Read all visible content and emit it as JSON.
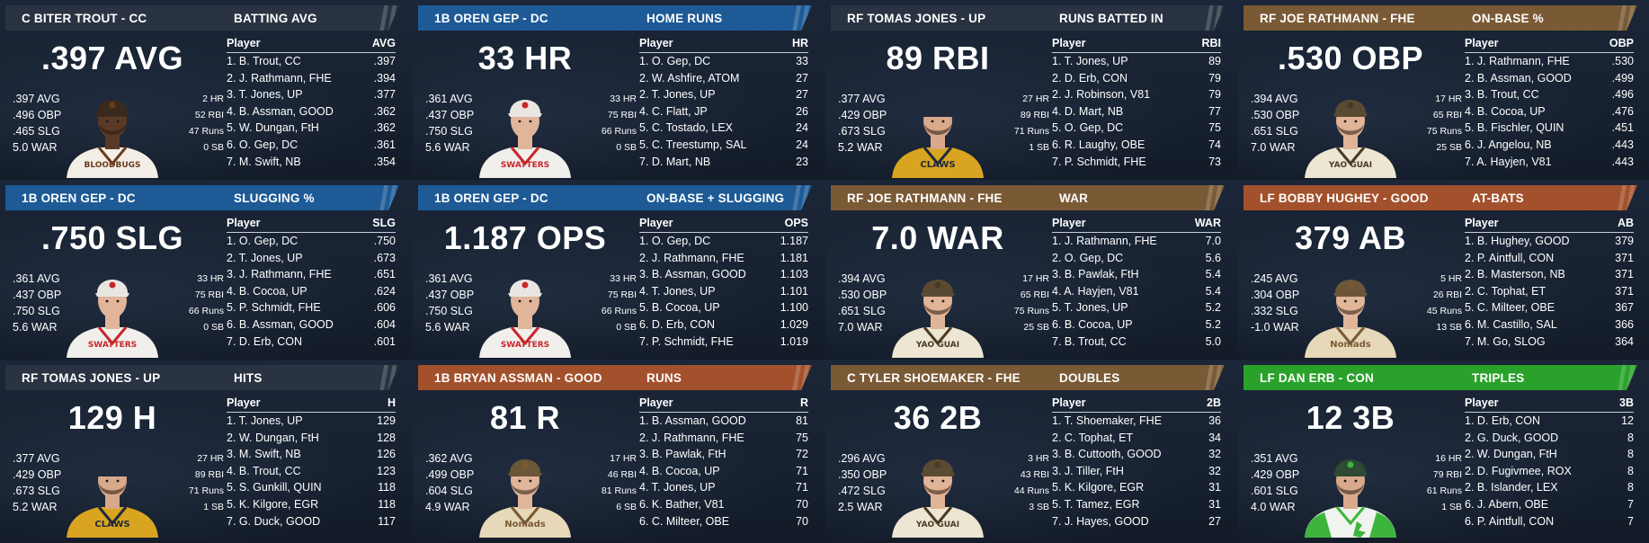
{
  "colors": {
    "background": "#141c29",
    "header_navy": "#2a3342",
    "header_blue": "#1d5a96",
    "header_brown": "#7a5a35",
    "header_orange": "#a3512c",
    "header_green": "#2aa12a"
  },
  "cards": [
    {
      "header_color": "#2a3342",
      "player": "C BITER TROUT - CC",
      "stat_title": "BATTING AVG",
      "big_stat": ".397 AVG",
      "left_stats": [
        ".397 AVG",
        ".496 OBP",
        ".465 SLG",
        "5.0 WAR"
      ],
      "right_stats": [
        "2 HR",
        "52 RBI",
        "47 Runs",
        "0 SB"
      ],
      "portrait": {
        "cap": "#3a2a1e",
        "jersey": "#f3efe6",
        "trim": "#6b3c1e",
        "skin": "#5a3a26",
        "lettering": "BLOODBUGS",
        "style": "dark"
      },
      "table": {
        "col_player": "Player",
        "col_stat": "AVG",
        "rows": [
          [
            "1. B. Trout, CC",
            ".397"
          ],
          [
            "2. J. Rathmann, FHE",
            ".394"
          ],
          [
            "3. T. Jones, UP",
            ".377"
          ],
          [
            "4. B. Assman, GOOD",
            ".362"
          ],
          [
            "5. W. Dungan, FtH",
            ".362"
          ],
          [
            "6. O. Gep, DC",
            ".361"
          ],
          [
            "7. M. Swift, NB",
            ".354"
          ]
        ]
      }
    },
    {
      "header_color": "#1d5a96",
      "player": "1B OREN GEP - DC",
      "stat_title": "HOME RUNS",
      "big_stat": "33 HR",
      "left_stats": [
        ".361 AVG",
        ".437 OBP",
        ".750 SLG",
        "5.6 WAR"
      ],
      "right_stats": [
        "33 HR",
        "75 RBI",
        "66 Runs",
        "0 SB"
      ],
      "portrait": {
        "cap": "#e9e6e2",
        "jersey": "#f1efec",
        "trim": "#c8262b",
        "skin": "#e0b59a",
        "lettering": "SWATTERS",
        "style": "light"
      },
      "table": {
        "col_player": "Player",
        "col_stat": "HR",
        "rows": [
          [
            "1. O. Gep, DC",
            "33"
          ],
          [
            "2. W. Ashfire, ATOM",
            "27"
          ],
          [
            "2. T. Jones, UP",
            "27"
          ],
          [
            "4. C. Flatt, JP",
            "26"
          ],
          [
            "5. C. Tostado, LEX",
            "24"
          ],
          [
            "5. C. Treestump, SAL",
            "24"
          ],
          [
            "7. D. Mart, NB",
            "23"
          ]
        ]
      }
    },
    {
      "header_color": "#2a3342",
      "player": "RF TOMAS JONES - UP",
      "stat_title": "RUNS BATTED IN",
      "big_stat": "89 RBI",
      "left_stats": [
        ".377 AVG",
        ".429 OBP",
        ".673 SLG",
        "5.2 WAR"
      ],
      "right_stats": [
        "27 HR",
        "89 RBI",
        "71 Runs",
        "1 SB"
      ],
      "portrait": {
        "cap": "#1f2a3d",
        "jersey": "#d9a521",
        "trim": "#1f2a3d",
        "skin": "#d8a98b",
        "lettering": "CLAWS",
        "style": "gold"
      },
      "table": {
        "col_player": "Player",
        "col_stat": "RBI",
        "rows": [
          [
            "1. T. Jones, UP",
            "89"
          ],
          [
            "2. D. Erb, CON",
            "79"
          ],
          [
            "2. J. Robinson, V81",
            "79"
          ],
          [
            "4. D. Mart, NB",
            "77"
          ],
          [
            "5. O. Gep, DC",
            "75"
          ],
          [
            "6. R. Laughy, OBE",
            "74"
          ],
          [
            "7. P. Schmidt, FHE",
            "73"
          ]
        ]
      }
    },
    {
      "header_color": "#7a5a35",
      "player": "RF JOE RATHMANN - FHE",
      "stat_title": "ON-BASE %",
      "big_stat": ".530 OBP",
      "left_stats": [
        ".394 AVG",
        ".530 OBP",
        ".651 SLG",
        "7.0 WAR"
      ],
      "right_stats": [
        "17 HR",
        "65 RBI",
        "75 Runs",
        "25 SB"
      ],
      "portrait": {
        "cap": "#5b4a33",
        "jersey": "#ede6d2",
        "trim": "#4a3a24",
        "skin": "#e2b497",
        "lettering": "YAO GUAI",
        "style": "cream"
      },
      "table": {
        "col_player": "Player",
        "col_stat": "OBP",
        "rows": [
          [
            "1. J. Rathmann, FHE",
            ".530"
          ],
          [
            "2. B. Assman, GOOD",
            ".499"
          ],
          [
            "3. B. Trout, CC",
            ".496"
          ],
          [
            "4. B. Cocoa, UP",
            ".476"
          ],
          [
            "5. B. Fischler, QUIN",
            ".451"
          ],
          [
            "6. J. Angelou, NB",
            ".443"
          ],
          [
            "7. A. Hayjen, V81",
            ".443"
          ]
        ]
      }
    },
    {
      "header_color": "#1d5a96",
      "player": "1B OREN GEP - DC",
      "stat_title": "SLUGGING %",
      "big_stat": ".750 SLG",
      "left_stats": [
        ".361 AVG",
        ".437 OBP",
        ".750 SLG",
        "5.6 WAR"
      ],
      "right_stats": [
        "33 HR",
        "75 RBI",
        "66 Runs",
        "0 SB"
      ],
      "portrait": {
        "cap": "#e9e6e2",
        "jersey": "#f1efec",
        "trim": "#c8262b",
        "skin": "#e0b59a",
        "lettering": "SWATTERS",
        "style": "light"
      },
      "table": {
        "col_player": "Player",
        "col_stat": "SLG",
        "rows": [
          [
            "1. O. Gep, DC",
            ".750"
          ],
          [
            "2. T. Jones, UP",
            ".673"
          ],
          [
            "3. J. Rathmann, FHE",
            ".651"
          ],
          [
            "4. B. Cocoa, UP",
            ".624"
          ],
          [
            "5. P. Schmidt, FHE",
            ".606"
          ],
          [
            "6. B. Assman, GOOD",
            ".604"
          ],
          [
            "7. D. Erb, CON",
            ".601"
          ]
        ]
      }
    },
    {
      "header_color": "#1d5a96",
      "player": "1B OREN GEP - DC",
      "stat_title": "ON-BASE + SLUGGING",
      "big_stat": "1.187 OPS",
      "left_stats": [
        ".361 AVG",
        ".437 OBP",
        ".750 SLG",
        "5.6 WAR"
      ],
      "right_stats": [
        "33 HR",
        "75 RBI",
        "66 Runs",
        "0 SB"
      ],
      "portrait": {
        "cap": "#e9e6e2",
        "jersey": "#f1efec",
        "trim": "#c8262b",
        "skin": "#e0b59a",
        "lettering": "SWATTERS",
        "style": "light"
      },
      "table": {
        "col_player": "Player",
        "col_stat": "OPS",
        "rows": [
          [
            "1. O. Gep, DC",
            "1.187"
          ],
          [
            "2. J. Rathmann, FHE",
            "1.181"
          ],
          [
            "3. B. Assman, GOOD",
            "1.103"
          ],
          [
            "4. T. Jones, UP",
            "1.101"
          ],
          [
            "5. B. Cocoa, UP",
            "1.100"
          ],
          [
            "6. D. Erb, CON",
            "1.029"
          ],
          [
            "7. P. Schmidt, FHE",
            "1.019"
          ]
        ]
      }
    },
    {
      "header_color": "#7a5a35",
      "player": "RF JOE RATHMANN - FHE",
      "stat_title": "WAR",
      "big_stat": "7.0 WAR",
      "left_stats": [
        ".394 AVG",
        ".530 OBP",
        ".651 SLG",
        "7.0 WAR"
      ],
      "right_stats": [
        "17 HR",
        "65 RBI",
        "75 Runs",
        "25 SB"
      ],
      "portrait": {
        "cap": "#5b4a33",
        "jersey": "#ede6d2",
        "trim": "#4a3a24",
        "skin": "#e2b497",
        "lettering": "YAO GUAI",
        "style": "cream"
      },
      "table": {
        "col_player": "Player",
        "col_stat": "WAR",
        "rows": [
          [
            "1. J. Rathmann, FHE",
            "7.0"
          ],
          [
            "2. O. Gep, DC",
            "5.6"
          ],
          [
            "3. B. Pawlak, FtH",
            "5.4"
          ],
          [
            "4. A. Hayjen, V81",
            "5.4"
          ],
          [
            "5. T. Jones, UP",
            "5.2"
          ],
          [
            "6. B. Cocoa, UP",
            "5.2"
          ],
          [
            "7. B. Trout, CC",
            "5.0"
          ]
        ]
      }
    },
    {
      "header_color": "#a3512c",
      "player": "LF BOBBY HUGHEY - GOOD",
      "stat_title": "AT-BATS",
      "big_stat": "379 AB",
      "left_stats": [
        ".245 AVG",
        ".304 OBP",
        ".332 SLG",
        "-1.0 WAR"
      ],
      "right_stats": [
        "5 HR",
        "26 RBI",
        "45 Runs",
        "13 SB"
      ],
      "portrait": {
        "cap": "#6b5637",
        "jersey": "#e6d8b8",
        "trim": "#7a5a35",
        "skin": "#e0b59a",
        "lettering": "Nomads",
        "style": "tan"
      },
      "table": {
        "col_player": "Player",
        "col_stat": "AB",
        "rows": [
          [
            "1. B. Hughey, GOOD",
            "379"
          ],
          [
            "2. P. Aintfull, CON",
            "371"
          ],
          [
            "2. B. Masterson, NB",
            "371"
          ],
          [
            "2. C. Tophat, ET",
            "371"
          ],
          [
            "5. C. Milteer, OBE",
            "367"
          ],
          [
            "6. M. Castillo, SAL",
            "366"
          ],
          [
            "7. M. Go, SLOG",
            "364"
          ]
        ]
      }
    },
    {
      "header_color": "#2a3342",
      "player": "RF TOMAS JONES - UP",
      "stat_title": "HITS",
      "big_stat": "129 H",
      "left_stats": [
        ".377 AVG",
        ".429 OBP",
        ".673 SLG",
        "5.2 WAR"
      ],
      "right_stats": [
        "27 HR",
        "89 RBI",
        "71 Runs",
        "1 SB"
      ],
      "portrait": {
        "cap": "#1f2a3d",
        "jersey": "#d9a521",
        "trim": "#1f2a3d",
        "skin": "#d8a98b",
        "lettering": "CLAWS",
        "style": "gold"
      },
      "table": {
        "col_player": "Player",
        "col_stat": "H",
        "rows": [
          [
            "1. T. Jones, UP",
            "129"
          ],
          [
            "2. W. Dungan, FtH",
            "128"
          ],
          [
            "3. M. Swift, NB",
            "126"
          ],
          [
            "4. B. Trout, CC",
            "123"
          ],
          [
            "5. S. Gunkill, QUIN",
            "118"
          ],
          [
            "5. K. Kilgore, EGR",
            "118"
          ],
          [
            "7. G. Duck, GOOD",
            "117"
          ]
        ]
      }
    },
    {
      "header_color": "#a3512c",
      "player": "1B BRYAN ASSMAN - GOOD",
      "stat_title": "RUNS",
      "big_stat": "81 R",
      "left_stats": [
        ".362 AVG",
        ".499 OBP",
        ".604 SLG",
        "4.9 WAR"
      ],
      "right_stats": [
        "17 HR",
        "46 RBI",
        "81 Runs",
        "6 SB"
      ],
      "portrait": {
        "cap": "#6b5637",
        "jersey": "#e6d8b8",
        "trim": "#7a5a35",
        "skin": "#e0b59a",
        "lettering": "Nomads",
        "style": "tan"
      },
      "table": {
        "col_player": "Player",
        "col_stat": "R",
        "rows": [
          [
            "1. B. Assman, GOOD",
            "81"
          ],
          [
            "2. J. Rathmann, FHE",
            "75"
          ],
          [
            "3. B. Pawlak, FtH",
            "72"
          ],
          [
            "4. B. Cocoa, UP",
            "71"
          ],
          [
            "4. T. Jones, UP",
            "71"
          ],
          [
            "6. K. Bather, V81",
            "70"
          ],
          [
            "6. C. Milteer, OBE",
            "70"
          ]
        ]
      }
    },
    {
      "header_color": "#7a5a35",
      "player": "C TYLER SHOEMAKER - FHE",
      "stat_title": "DOUBLES",
      "big_stat": "36 2B",
      "left_stats": [
        ".296 AVG",
        ".350 OBP",
        ".472 SLG",
        "2.5 WAR"
      ],
      "right_stats": [
        "3 HR",
        "43 RBI",
        "44 Runs",
        "3 SB"
      ],
      "portrait": {
        "cap": "#5b4a33",
        "jersey": "#ede6d2",
        "trim": "#4a3a24",
        "skin": "#e2b497",
        "lettering": "YAO GUAI",
        "style": "cream"
      },
      "table": {
        "col_player": "Player",
        "col_stat": "2B",
        "rows": [
          [
            "1. T. Shoemaker, FHE",
            "36"
          ],
          [
            "2. C. Tophat, ET",
            "34"
          ],
          [
            "3. B. Cuttooth, GOOD",
            "32"
          ],
          [
            "3. J. Tiller, FtH",
            "32"
          ],
          [
            "5. K. Kilgore, EGR",
            "31"
          ],
          [
            "5. T. Tamez, EGR",
            "31"
          ],
          [
            "7. J. Hayes, GOOD",
            "27"
          ]
        ]
      }
    },
    {
      "header_color": "#2aa12a",
      "player": "LF DAN ERB - CON",
      "stat_title": "TRIPLES",
      "big_stat": "12 3B",
      "left_stats": [
        ".351 AVG",
        ".429 OBP",
        ".601 SLG",
        "4.0 WAR"
      ],
      "right_stats": [
        "16 HR",
        "79 RBI",
        "61 Runs",
        "1 SB"
      ],
      "portrait": {
        "cap": "#2f4a33",
        "jersey": "#f1f3ee",
        "trim": "#3db53d",
        "skin": "#d8a98b",
        "lettering": "",
        "style": "green"
      },
      "table": {
        "col_player": "Player",
        "col_stat": "3B",
        "rows": [
          [
            "1. D. Erb, CON",
            "12"
          ],
          [
            "2. G. Duck, GOOD",
            "8"
          ],
          [
            "2. W. Dungan, FtH",
            "8"
          ],
          [
            "2. D. Fugivmee, ROX",
            "8"
          ],
          [
            "2. B. Islander, LEX",
            "8"
          ],
          [
            "6. J. Abern, OBE",
            "7"
          ],
          [
            "6. P. Aintfull, CON",
            "7"
          ]
        ]
      }
    }
  ]
}
